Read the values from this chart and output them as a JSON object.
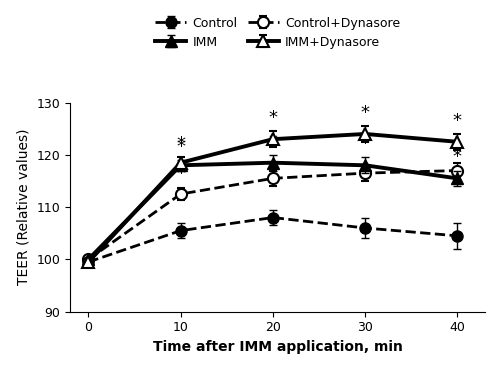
{
  "x": [
    0,
    10,
    20,
    30,
    40
  ],
  "control": [
    99.5,
    105.5,
    108.0,
    106.0,
    104.5
  ],
  "control_err": [
    0.5,
    1.5,
    1.5,
    2.0,
    2.5
  ],
  "control_dynasore": [
    100.0,
    112.5,
    115.5,
    116.5,
    117.0
  ],
  "control_dynasore_err": [
    0.5,
    1.2,
    1.5,
    1.5,
    1.5
  ],
  "IMM": [
    100.0,
    118.0,
    118.5,
    118.0,
    115.5
  ],
  "IMM_err": [
    0.5,
    1.0,
    1.5,
    1.5,
    1.5
  ],
  "IMM_dynasore": [
    99.5,
    118.5,
    123.0,
    124.0,
    122.5
  ],
  "IMM_dynasore_err": [
    0.5,
    1.0,
    1.5,
    1.5,
    1.5
  ],
  "ylabel": "TEER (Relative values)",
  "xlabel": "Time after IMM application, min",
  "ylim": [
    90,
    130
  ],
  "yticks": [
    90,
    100,
    110,
    120,
    130
  ],
  "xticks": [
    0,
    10,
    20,
    30,
    40
  ]
}
